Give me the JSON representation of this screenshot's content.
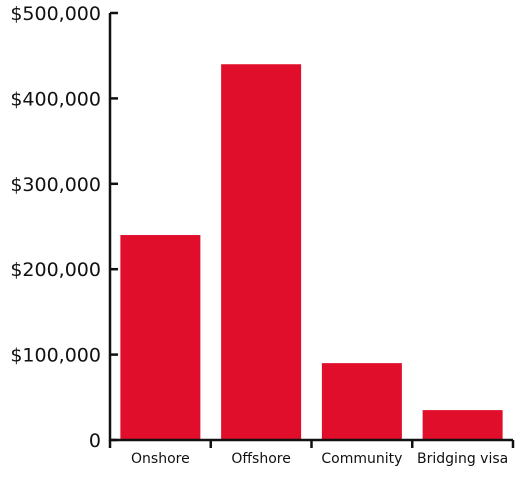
{
  "chart_data": {
    "type": "bar",
    "title": "",
    "xlabel": "",
    "ylabel": "",
    "categories": [
      "Onshore",
      "Offshore",
      "Community",
      "Bridging visa"
    ],
    "values": [
      240000,
      440000,
      90000,
      35000
    ],
    "ylim": [
      0,
      500000
    ],
    "yticks": [
      0,
      100000,
      200000,
      300000,
      400000,
      500000
    ],
    "ytick_labels": [
      "0",
      "$100,000",
      "$200,000",
      "$300,000",
      "$400,000",
      "$500,000"
    ],
    "grid": false,
    "legend": "none",
    "bar_color": "#e00e2a"
  }
}
